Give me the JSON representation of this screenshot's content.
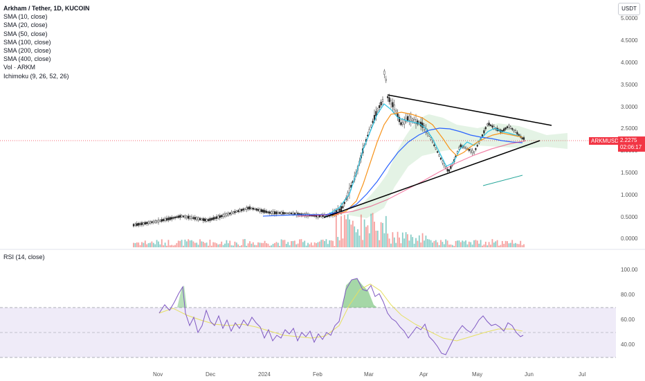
{
  "legend": {
    "title": "Arkham / Tether, 1D, KUCOIN",
    "indicators": [
      "SMA (10, close)",
      "SMA (20, close)",
      "SMA (50, close)",
      "SMA (100, close)",
      "SMA (200, close)",
      "SMA (400, close)",
      "Vol · ARKM",
      "Ichimoku (9, 26, 52, 26)"
    ]
  },
  "currency_button": "USDT",
  "price_label": {
    "symbol": "ARKMUSDT",
    "price": "2.2275",
    "countdown": "02:06:17"
  },
  "rsi_label": "RSI (14, close)",
  "price_axis": [
    "5.0000",
    "4.5000",
    "4.0000",
    "3.5000",
    "3.0000",
    "2.5000",
    "2.0000",
    "1.5000",
    "1.0000",
    "0.5000",
    "0.0000"
  ],
  "rsi_axis": [
    "100.00",
    "80.00",
    "60.00",
    "40.00"
  ],
  "time_axis": [
    "Nov",
    "Dec",
    "2024",
    "Feb",
    "Mar",
    "Apr",
    "May",
    "Jun",
    "Jul"
  ],
  "colors": {
    "up": "#26a69a",
    "down": "#ef5350",
    "sma10": "#2ec4e3",
    "sma20": "#f7931a",
    "sma50": "#2962ff",
    "sma100": "#e91e63",
    "rsi": "#7e57c2",
    "rsi_ma": "#e6e060",
    "cloud": "#4caf50",
    "trendline": "#000000"
  }
}
